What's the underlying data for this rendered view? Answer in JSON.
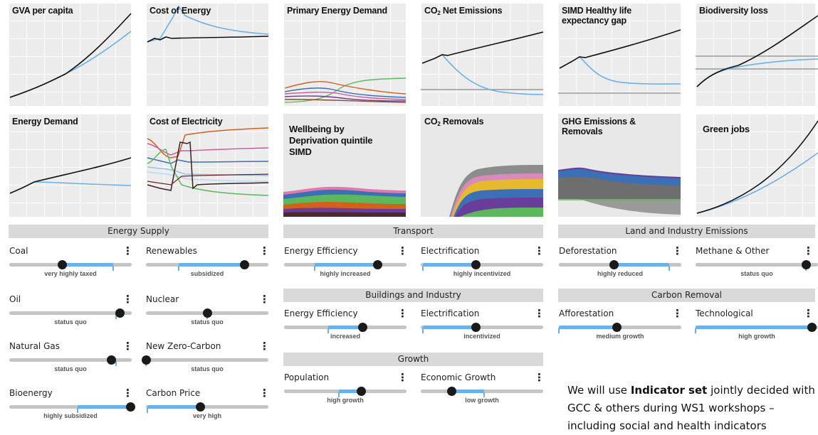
{
  "indicators": {
    "gva": "GVA per capita",
    "cost_energy": "Cost of Energy",
    "primary_energy": "Primary Energy Demand",
    "co2_net_prefix": "CO",
    "co2_net_sub": "2",
    "co2_net_suffix": " Net Emissions",
    "simd_life_l1": "SIMD Healthy life",
    "simd_life_l2": "expectancy gap",
    "biodiversity": "Biodiversity loss",
    "energy_demand": "Energy Demand",
    "cost_electricity": "Cost of Electricity",
    "wellbeing_l1": "Wellbeing by",
    "wellbeing_l2": "Deprivation quintile",
    "wellbeing_l3": "SIMD",
    "co2_rem_prefix": "CO",
    "co2_rem_sub": "2",
    "co2_rem_suffix": " Removals",
    "ghg_l1": "GHG Emissions &",
    "ghg_l2": "Removals",
    "green_jobs": "Green jobs"
  },
  "sections": {
    "energy_supply": "Energy Supply",
    "transport": "Transport",
    "land_industry": "Land and Industry Emissions",
    "buildings": "Buildings and Industry",
    "carbon_removal": "Carbon Removal",
    "growth": "Growth"
  },
  "controls": [
    {
      "label": "Coal",
      "value": "very highly taxed",
      "level": 0.43,
      "fill": [
        0.43,
        0.85
      ]
    },
    {
      "label": "Renewables",
      "value": "subsidized",
      "level": 0.8,
      "fill": [
        0.27,
        0.8
      ]
    },
    {
      "label": "Oil",
      "value": "status quo",
      "level": 0.9,
      "fill": [
        0.87,
        0.9
      ]
    },
    {
      "label": "Nuclear",
      "value": "status quo",
      "level": 0.5,
      "fill": [
        0.5,
        0.5
      ]
    },
    {
      "label": "Natural Gas",
      "value": "status quo",
      "level": 0.83,
      "fill": [
        0.83,
        0.87
      ]
    },
    {
      "label": "New Zero-Carbon",
      "value": "status quo",
      "level": 0.0,
      "fill": [
        0.0,
        0.0
      ]
    },
    {
      "label": "Bioenergy",
      "value": "highly subsidized",
      "level": 0.99,
      "fill": [
        0.56,
        0.99
      ]
    },
    {
      "label": "Carbon Price",
      "value": "very high",
      "level": 0.44,
      "fill": [
        0.01,
        0.44
      ]
    },
    {
      "label": "Energy Efficiency",
      "value": "highly increased",
      "level": 0.76,
      "fill": [
        0.25,
        0.76
      ]
    },
    {
      "label": "Electrification",
      "value": "highly incentivized",
      "level": 0.45,
      "fill": [
        0.02,
        0.45
      ]
    },
    {
      "label": "Energy Efficiency",
      "value": "increased",
      "level": 0.64,
      "fill": [
        0.36,
        0.64
      ]
    },
    {
      "label": "Electrification",
      "value": "incentivized",
      "level": 0.45,
      "fill": [
        0.02,
        0.45
      ]
    },
    {
      "label": "Population",
      "value": "high growth",
      "level": 0.63,
      "fill": [
        0.45,
        0.63
      ]
    },
    {
      "label": "Economic Growth",
      "value": "low growth",
      "level": 0.25,
      "fill": [
        0.25,
        0.52
      ]
    },
    {
      "label": "Deforestation",
      "value": "highly reduced",
      "level": 0.45,
      "fill": [
        0.45,
        0.9
      ]
    },
    {
      "label": "Methane & Other",
      "value": "status quo",
      "level": 0.9,
      "fill": [
        0.9,
        0.9
      ]
    },
    {
      "label": "Afforestation",
      "value": "medium growth",
      "level": 0.47,
      "fill": [
        0.0,
        0.47
      ]
    },
    {
      "label": "Technological",
      "value": "high growth",
      "level": 0.95,
      "fill": [
        0.0,
        0.95
      ]
    }
  ],
  "menu_glyph": "⋮",
  "note": {
    "pre": "We will use ",
    "bold": "Indicator set",
    "post": " jointly decided with GCC & others during WS1 workshops – including social and health indicators"
  },
  "colors": {
    "baseline": "#111111",
    "scenario": "#6ab0ea",
    "track": "#c4c4c4"
  }
}
